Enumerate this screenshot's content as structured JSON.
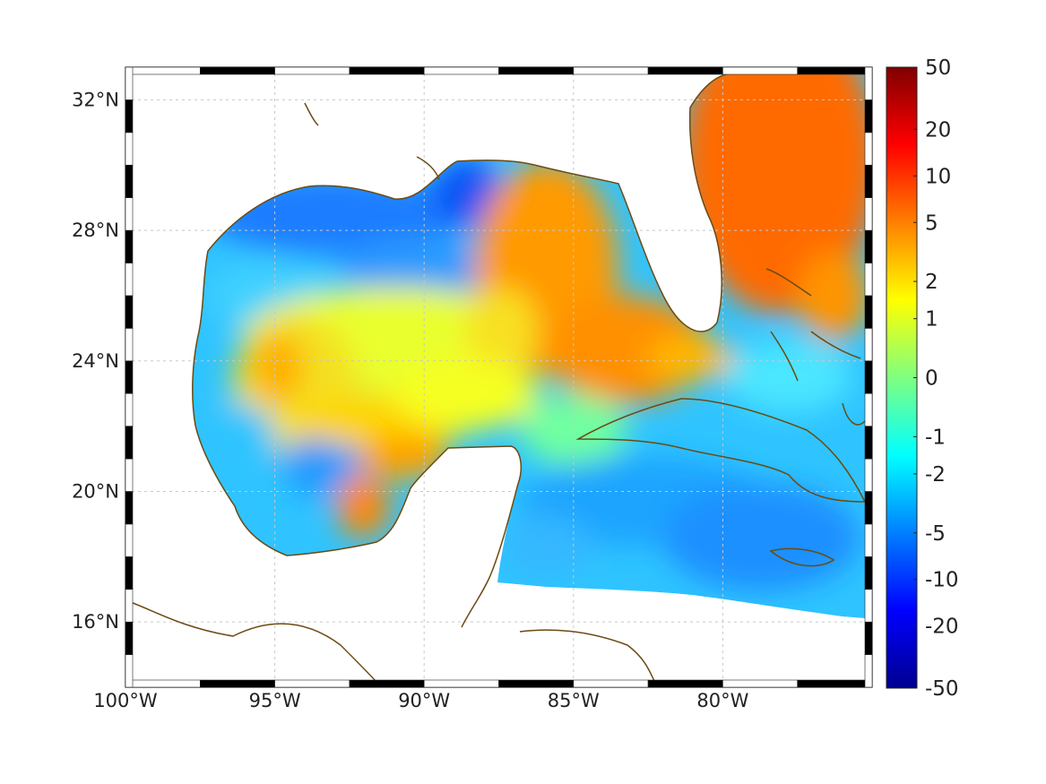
{
  "map": {
    "lon_range": [
      -100,
      -75
    ],
    "lat_range": [
      14,
      33
    ],
    "grid": true,
    "lon_ticks": [
      {
        "value": -100,
        "label": "100°W"
      },
      {
        "value": -95,
        "label": "95°W"
      },
      {
        "value": -90,
        "label": "90°W"
      },
      {
        "value": -85,
        "label": "85°W"
      },
      {
        "value": -80,
        "label": "80°W"
      }
    ],
    "lat_ticks": [
      {
        "value": 16,
        "label": "16°N"
      },
      {
        "value": 20,
        "label": "20°N"
      },
      {
        "value": 24,
        "label": "24°N"
      },
      {
        "value": 28,
        "label": "28°N"
      },
      {
        "value": 32,
        "label": "32°N"
      }
    ],
    "coast_color": "#6b4a12",
    "grid_color": "#c8c8c8"
  },
  "colorbar": {
    "colormap": "jet",
    "ticks": [
      "50",
      "20",
      "10",
      "5",
      "2",
      "1",
      "0",
      "-1",
      "-2",
      "-5",
      "-10",
      "-20",
      "-50"
    ]
  }
}
